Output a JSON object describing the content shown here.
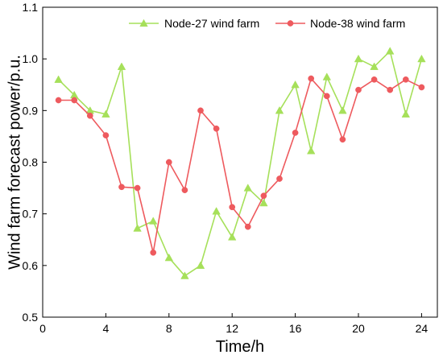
{
  "chart_data": {
    "type": "line",
    "xlabel": "Time/h",
    "ylabel": "Wind farm forecast power/p.u.",
    "xlim": [
      0,
      25
    ],
    "ylim": [
      0.5,
      1.1
    ],
    "xticks": [
      0,
      4,
      8,
      12,
      16,
      20,
      24
    ],
    "yticks": [
      0.5,
      0.6,
      0.7,
      0.8,
      0.9,
      1.0,
      1.1
    ],
    "ytick_labels": [
      "0.5",
      "0.6",
      "0.7",
      "0.8",
      "0.9",
      "1.0",
      "1.1"
    ],
    "grid": false,
    "legend_position": "top",
    "x": [
      1,
      2,
      3,
      4,
      5,
      6,
      7,
      8,
      9,
      10,
      11,
      12,
      13,
      14,
      15,
      16,
      17,
      18,
      19,
      20,
      21,
      22,
      23,
      24
    ],
    "series": [
      {
        "name": "Node-27 wind farm",
        "color": "#a6e05a",
        "marker": "triangle",
        "values": [
          0.96,
          0.93,
          0.9,
          0.893,
          0.985,
          0.672,
          0.686,
          0.615,
          0.58,
          0.6,
          0.705,
          0.655,
          0.75,
          0.721,
          0.9,
          0.95,
          0.822,
          0.965,
          0.9,
          1.0,
          0.985,
          1.015,
          0.893,
          1.0
        ]
      },
      {
        "name": "Node-38 wind farm",
        "color": "#ee5a5e",
        "marker": "circle",
        "values": [
          0.92,
          0.92,
          0.89,
          0.852,
          0.752,
          0.75,
          0.625,
          0.8,
          0.746,
          0.9,
          0.865,
          0.713,
          0.675,
          0.735,
          0.768,
          0.857,
          0.962,
          0.928,
          0.844,
          0.94,
          0.96,
          0.94,
          0.96,
          0.945
        ]
      }
    ]
  }
}
